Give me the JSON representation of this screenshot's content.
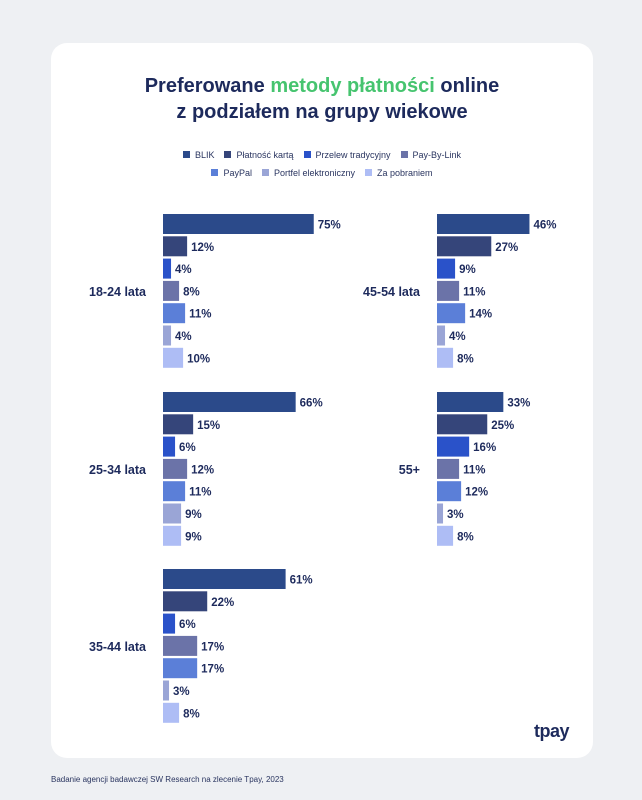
{
  "title": {
    "line1_pre": "Preferowane ",
    "line1_accent": "metody płatności",
    "line1_post": " online",
    "line2": "z podziałem na grupy wiekowe"
  },
  "colors": {
    "accent_green": "#46c46f",
    "title": "#1d2a5c",
    "background": "#eef0f3",
    "card": "#ffffff"
  },
  "legend_rows": [
    [
      0,
      1,
      2,
      3
    ],
    [
      4,
      5,
      6
    ]
  ],
  "chart_data": {
    "type": "bar",
    "orientation": "horizontal",
    "title": "Preferowane metody płatności online z podziałem na grupy wiekowe",
    "legend_position": "top",
    "value_suffix": "%",
    "series": [
      {
        "name": "BLIK",
        "color": "#2b4a8a"
      },
      {
        "name": "Płatność kartą",
        "color": "#35457a"
      },
      {
        "name": "Przelew tradycyjny",
        "color": "#2a52c9"
      },
      {
        "name": "Pay-By-Link",
        "color": "#6b73a8"
      },
      {
        "name": "PayPal",
        "color": "#5b7fd8"
      },
      {
        "name": "Portfel elektroniczny",
        "color": "#9aa5d6"
      },
      {
        "name": "Za pobraniem",
        "color": "#aebdf5"
      }
    ],
    "groups": [
      {
        "label": "18-24 lata",
        "values": [
          75,
          12,
          4,
          8,
          11,
          4,
          10
        ]
      },
      {
        "label": "25-34 lata",
        "values": [
          66,
          15,
          6,
          12,
          11,
          9,
          9
        ]
      },
      {
        "label": "35-44 lata",
        "values": [
          61,
          22,
          6,
          17,
          17,
          3,
          8
        ]
      },
      {
        "label": "45-54 lata",
        "values": [
          46,
          27,
          9,
          11,
          14,
          4,
          8
        ]
      },
      {
        "label": "55+",
        "values": [
          33,
          25,
          16,
          11,
          12,
          3,
          8
        ]
      }
    ]
  },
  "logo": "tpay",
  "footer": "Badanie agencji badawczej SW Research na zlecenie Tpay, 2023"
}
